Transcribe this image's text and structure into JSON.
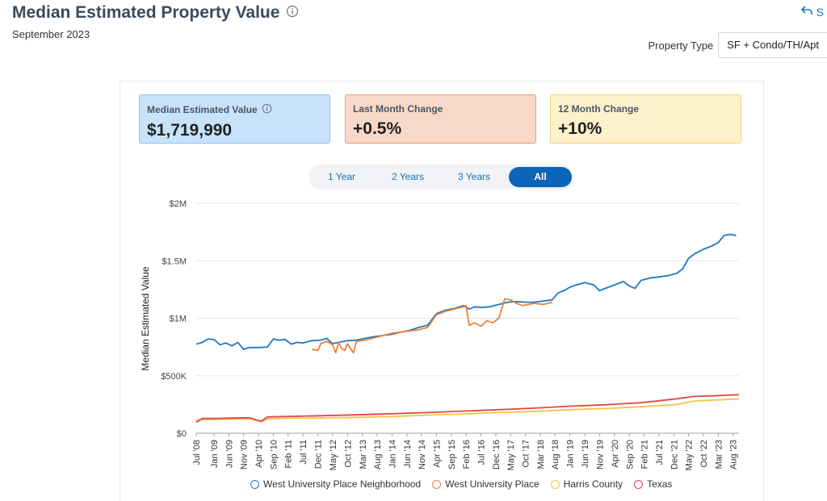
{
  "header": {
    "title": "Median Estimated Property Value",
    "subtitle": "September 2023",
    "share_label": "S",
    "property_type_label": "Property Type",
    "property_type_value": "SF + Condo/TH/Apt"
  },
  "cards": [
    {
      "label": "Median Estimated Value",
      "value": "$1,719,990"
    },
    {
      "label": "Last Month Change",
      "value": "+0.5%"
    },
    {
      "label": "12 Month Change",
      "value": "+10%"
    }
  ],
  "range_buttons": [
    "1 Year",
    "2 Years",
    "3 Years",
    "All"
  ],
  "range_active": "All",
  "colors": {
    "neighborhood": "#1f77c4",
    "city": "#e8833a",
    "county": "#f6c445",
    "state": "#e0474c"
  },
  "chart_data": {
    "type": "line",
    "title": "",
    "xlabel": "",
    "ylabel": "Median Estimated Value",
    "ylim": [
      0,
      2000000
    ],
    "yticks": [
      0,
      500000,
      1000000,
      1500000,
      2000000
    ],
    "ytick_labels": [
      "$0",
      "$500K",
      "$1M",
      "$1.5M",
      "$2M"
    ],
    "xlim": [
      2008.5,
      2023.75
    ],
    "xticks": [
      2008.5,
      2009.0,
      2009.42,
      2009.83,
      2010.25,
      2010.67,
      2011.08,
      2011.5,
      2011.92,
      2012.33,
      2012.75,
      2013.17,
      2013.58,
      2014.0,
      2014.42,
      2014.83,
      2015.25,
      2015.67,
      2016.08,
      2016.5,
      2016.92,
      2017.33,
      2017.75,
      2018.17,
      2018.58,
      2019.0,
      2019.42,
      2019.83,
      2020.25,
      2020.67,
      2021.08,
      2021.5,
      2021.92,
      2022.33,
      2022.75,
      2023.17,
      2023.58
    ],
    "xtick_labels": [
      "Jul '08",
      "Jan '09",
      "Jun '09",
      "Nov '09",
      "Apr '10",
      "Sep '10",
      "Feb '11",
      "Jul '11",
      "Dec '11",
      "May '12",
      "Oct '12",
      "Mar '13",
      "Aug '13",
      "Jan '14",
      "Jun '14",
      "Nov '14",
      "Apr '15",
      "Sep '15",
      "Feb '16",
      "Jul '16",
      "Dec '16",
      "May '17",
      "Oct '17",
      "Mar '18",
      "Aug '18",
      "Jan '19",
      "Jun '19",
      "Nov '19",
      "Apr '20",
      "Sep '20",
      "Feb '21",
      "Jul '21",
      "Dec '21",
      "May '22",
      "Oct '22",
      "Mar '23",
      "Aug '23"
    ],
    "series": [
      {
        "name": "West University Place Neighborhood",
        "color_key": "neighborhood",
        "x": [
          2008.5,
          2008.67,
          2008.83,
          2009.0,
          2009.17,
          2009.33,
          2009.5,
          2009.67,
          2009.83,
          2009.92,
          2010.0,
          2010.25,
          2010.5,
          2010.67,
          2010.83,
          2011.0,
          2011.17,
          2011.33,
          2011.5,
          2011.75,
          2012.0,
          2012.17,
          2012.33,
          2012.5,
          2012.75,
          2013.0,
          2013.25,
          2013.5,
          2013.75,
          2014.0,
          2014.25,
          2014.5,
          2014.75,
          2015.0,
          2015.25,
          2015.5,
          2015.75,
          2016.0,
          2016.17,
          2016.33,
          2016.5,
          2016.75,
          2017.0,
          2017.25,
          2017.5,
          2017.75,
          2018.0,
          2018.25,
          2018.5,
          2018.67,
          2018.83,
          2019.0,
          2019.17,
          2019.42,
          2019.67,
          2019.83,
          2020.0,
          2020.25,
          2020.5,
          2020.67,
          2020.83,
          2021.0,
          2021.25,
          2021.5,
          2021.75,
          2022.0,
          2022.17,
          2022.33,
          2022.5,
          2022.75,
          2023.0,
          2023.17,
          2023.33,
          2023.5,
          2023.67
        ],
        "values": [
          775000,
          790000,
          820000,
          815000,
          770000,
          785000,
          760000,
          790000,
          730000,
          740000,
          745000,
          745000,
          750000,
          820000,
          810000,
          815000,
          775000,
          790000,
          785000,
          805000,
          810000,
          825000,
          780000,
          790000,
          805000,
          810000,
          825000,
          840000,
          850000,
          860000,
          880000,
          895000,
          920000,
          940000,
          1040000,
          1070000,
          1085000,
          1110000,
          1080000,
          1100000,
          1095000,
          1100000,
          1120000,
          1140000,
          1145000,
          1140000,
          1140000,
          1150000,
          1160000,
          1220000,
          1240000,
          1270000,
          1290000,
          1310000,
          1290000,
          1240000,
          1260000,
          1290000,
          1320000,
          1280000,
          1260000,
          1330000,
          1350000,
          1360000,
          1370000,
          1390000,
          1430000,
          1520000,
          1560000,
          1600000,
          1630000,
          1660000,
          1720000,
          1730000,
          1720000
        ]
      },
      {
        "name": "West University Place",
        "color_key": "city",
        "x": [
          2011.75,
          2011.92,
          2012.0,
          2012.17,
          2012.33,
          2012.42,
          2012.5,
          2012.58,
          2012.67,
          2012.75,
          2012.83,
          2012.92,
          2013.0,
          2013.25,
          2013.5,
          2013.75,
          2014.0,
          2014.25,
          2014.5,
          2014.75,
          2015.0,
          2015.25,
          2015.5,
          2015.75,
          2016.0,
          2016.08,
          2016.17,
          2016.33,
          2016.5,
          2016.67,
          2016.83,
          2017.0,
          2017.17,
          2017.33,
          2017.5,
          2017.67,
          2017.83,
          2018.0,
          2018.25,
          2018.5
        ],
        "values": [
          730000,
          720000,
          780000,
          800000,
          770000,
          700000,
          790000,
          740000,
          720000,
          780000,
          740000,
          700000,
          800000,
          810000,
          830000,
          850000,
          870000,
          880000,
          890000,
          900000,
          920000,
          1030000,
          1060000,
          1080000,
          1100000,
          1110000,
          940000,
          960000,
          930000,
          980000,
          960000,
          1000000,
          1170000,
          1160000,
          1130000,
          1110000,
          1120000,
          1130000,
          1120000,
          1140000
        ]
      },
      {
        "name": "Harris County",
        "color_key": "county",
        "x": [
          2008.5,
          2009.0,
          2009.5,
          2010.0,
          2010.33,
          2010.5,
          2011.0,
          2012.0,
          2013.0,
          2014.0,
          2015.0,
          2016.0,
          2017.0,
          2018.0,
          2019.0,
          2020.0,
          2021.0,
          2022.0,
          2022.5,
          2023.0,
          2023.5,
          2023.75
        ],
        "values": [
          115000,
          120000,
          122000,
          125000,
          100000,
          125000,
          130000,
          132000,
          138000,
          145000,
          158000,
          168000,
          180000,
          190000,
          205000,
          215000,
          230000,
          250000,
          280000,
          288000,
          295000,
          298000
        ]
      },
      {
        "name": "Texas",
        "color_key": "state",
        "x": [
          2008.5,
          2008.67,
          2009.0,
          2009.5,
          2010.0,
          2010.25,
          2010.33,
          2010.5,
          2011.0,
          2012.0,
          2013.0,
          2014.0,
          2015.0,
          2016.0,
          2017.0,
          2018.0,
          2019.0,
          2020.0,
          2021.0,
          2022.0,
          2022.5,
          2023.0,
          2023.5,
          2023.75
        ],
        "values": [
          95000,
          130000,
          128000,
          132000,
          135000,
          110000,
          105000,
          142000,
          145000,
          152000,
          160000,
          170000,
          180000,
          192000,
          205000,
          218000,
          235000,
          248000,
          265000,
          300000,
          320000,
          325000,
          332000,
          335000
        ]
      }
    ]
  }
}
